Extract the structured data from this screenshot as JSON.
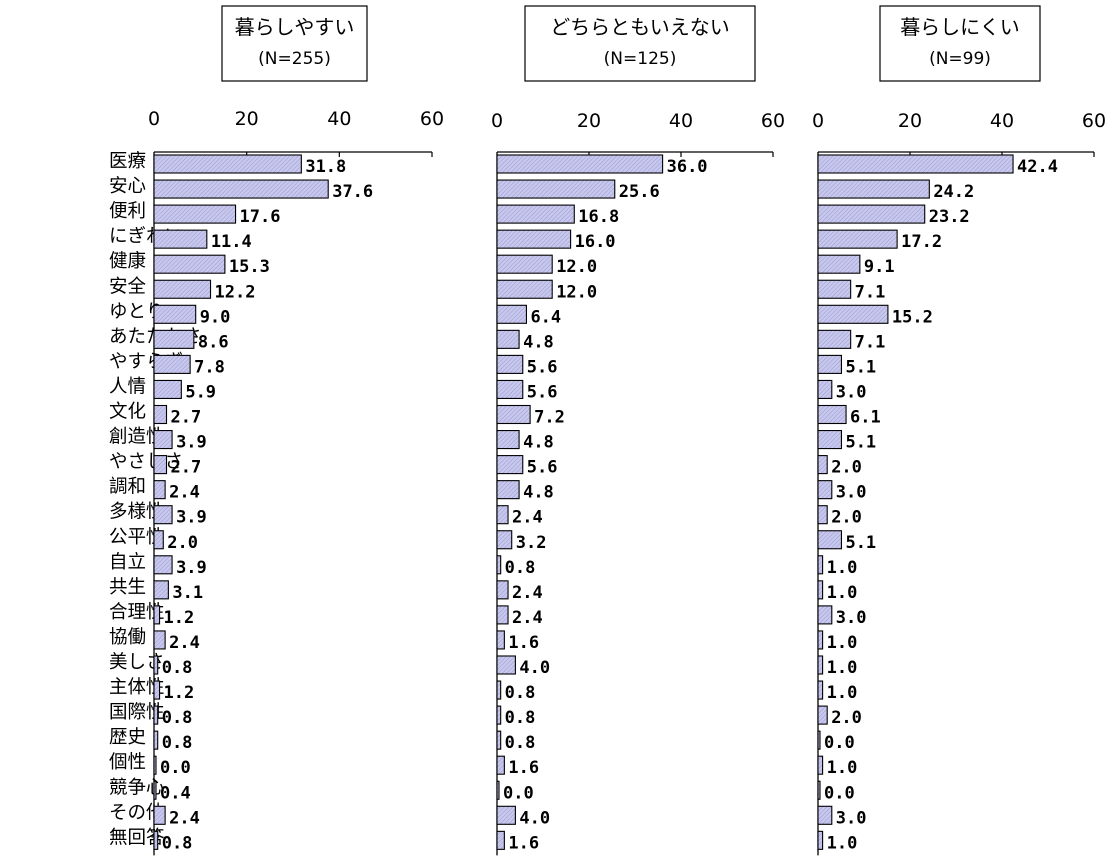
{
  "chart_data": {
    "type": "bar",
    "orientation": "horizontal",
    "categories": [
      "医療",
      "安心",
      "便利",
      "にぎわい",
      "健康",
      "安全",
      "ゆとり",
      "あたたかさ",
      "やすらぎ",
      "人情",
      "文化",
      "創造性",
      "やさしさ",
      "調和",
      "多様性",
      "公平性",
      "自立",
      "共生",
      "合理性",
      "協働",
      "美しさ",
      "主体性",
      "国際性",
      "歴史",
      "個性",
      "競争心",
      "その他",
      "無回答"
    ],
    "xlim": [
      0,
      60
    ],
    "ticks": [
      "0",
      "20",
      "40",
      "60"
    ],
    "tick_values": [
      0,
      20,
      40,
      60
    ],
    "grid": false,
    "panels": [
      {
        "title": "暮らしやすい",
        "n_label": "(N=255)",
        "values": [
          31.8,
          37.6,
          17.6,
          11.4,
          15.3,
          12.2,
          9.0,
          8.6,
          7.8,
          5.9,
          2.7,
          3.9,
          2.7,
          2.4,
          3.9,
          2.0,
          3.9,
          3.1,
          1.2,
          2.4,
          0.8,
          1.2,
          0.8,
          0.8,
          0.0,
          0.4,
          2.4,
          0.8
        ],
        "value_labels": [
          "31.8",
          "37.6",
          "17.6",
          "11.4",
          "15.3",
          "12.2",
          "9.0",
          "8.6",
          "7.8",
          "5.9",
          "2.7",
          "3.9",
          "2.7",
          "2.4",
          "3.9",
          "2.0",
          "3.9",
          "3.1",
          "1.2",
          "2.4",
          "0.8",
          "1.2",
          "0.8",
          "0.8",
          "0.0",
          "0.4",
          "2.4",
          "0.8"
        ]
      },
      {
        "title": "どちらともいえない",
        "n_label": "(N=125)",
        "values": [
          36.0,
          25.6,
          16.8,
          16.0,
          12.0,
          12.0,
          6.4,
          4.8,
          5.6,
          5.6,
          7.2,
          4.8,
          5.6,
          4.8,
          2.4,
          3.2,
          0.8,
          2.4,
          2.4,
          1.6,
          4.0,
          0.8,
          0.8,
          0.8,
          1.6,
          0.0,
          4.0,
          1.6
        ],
        "value_labels": [
          "36.0",
          "25.6",
          "16.8",
          "16.0",
          "12.0",
          "12.0",
          "6.4",
          "4.8",
          "5.6",
          "5.6",
          "7.2",
          "4.8",
          "5.6",
          "4.8",
          "2.4",
          "3.2",
          "0.8",
          "2.4",
          "2.4",
          "1.6",
          "4.0",
          "0.8",
          "0.8",
          "0.8",
          "1.6",
          "0.0",
          "4.0",
          "1.6"
        ]
      },
      {
        "title": "暮らしにくい",
        "n_label": "(N=99)",
        "values": [
          42.4,
          24.2,
          23.2,
          17.2,
          9.1,
          7.1,
          15.2,
          7.1,
          5.1,
          3.0,
          6.1,
          5.1,
          2.0,
          3.0,
          2.0,
          5.1,
          1.0,
          1.0,
          3.0,
          1.0,
          1.0,
          1.0,
          2.0,
          0.0,
          1.0,
          0.0,
          3.0,
          1.0
        ],
        "value_labels": [
          "42.4",
          "24.2",
          "23.2",
          "17.2",
          "9.1",
          "7.1",
          "15.2",
          "7.1",
          "5.1",
          "3.0",
          "6.1",
          "5.1",
          "2.0",
          "3.0",
          "2.0",
          "5.1",
          "1.0",
          "1.0",
          "3.0",
          "1.0",
          "1.0",
          "1.0",
          "2.0",
          "0.0",
          "1.0",
          "0.0",
          "3.0",
          "1.0"
        ]
      }
    ],
    "colors": {
      "bar_fill": "#c8c8ee",
      "bar_stroke": "#000000"
    }
  }
}
